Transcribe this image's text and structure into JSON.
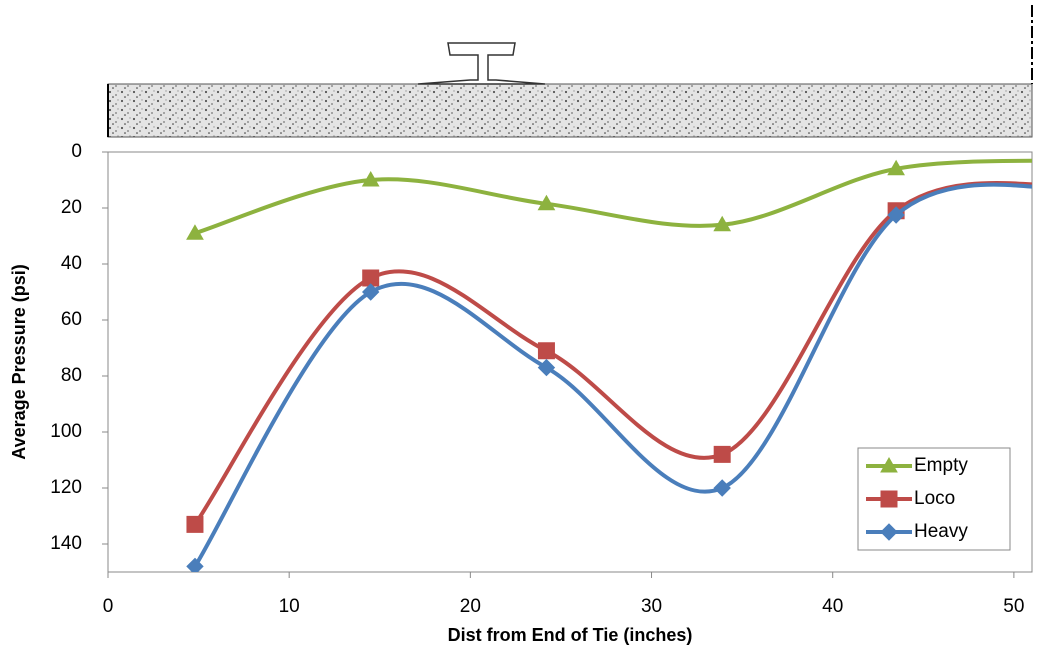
{
  "chart_data": {
    "type": "line",
    "x_label": "Dist from End of Tie (inches)",
    "y_label": "Average Pressure (psi)",
    "xlim": [
      0,
      51
    ],
    "xticks": [
      0,
      10,
      20,
      30,
      40,
      50
    ],
    "ylim": [
      150,
      0
    ],
    "yticks": [
      0,
      20,
      40,
      60,
      80,
      100,
      120,
      140
    ],
    "x": [
      4.8,
      14.5,
      24.2,
      33.9,
      43.5,
      53.2
    ],
    "legend": "lower right",
    "series": [
      {
        "name": "Empty",
        "color": "#8db23f",
        "marker": "triangle",
        "values": [
          29,
          10,
          18.5,
          26,
          6,
          3
        ]
      },
      {
        "name": "Loco",
        "color": "#be4b48",
        "marker": "square",
        "values": [
          133,
          45,
          71,
          108,
          21,
          12
        ]
      },
      {
        "name": "Heavy",
        "color": "#4a7ebb",
        "marker": "diamond",
        "values": [
          148,
          50,
          77,
          120,
          22.5,
          13
        ]
      }
    ]
  }
}
